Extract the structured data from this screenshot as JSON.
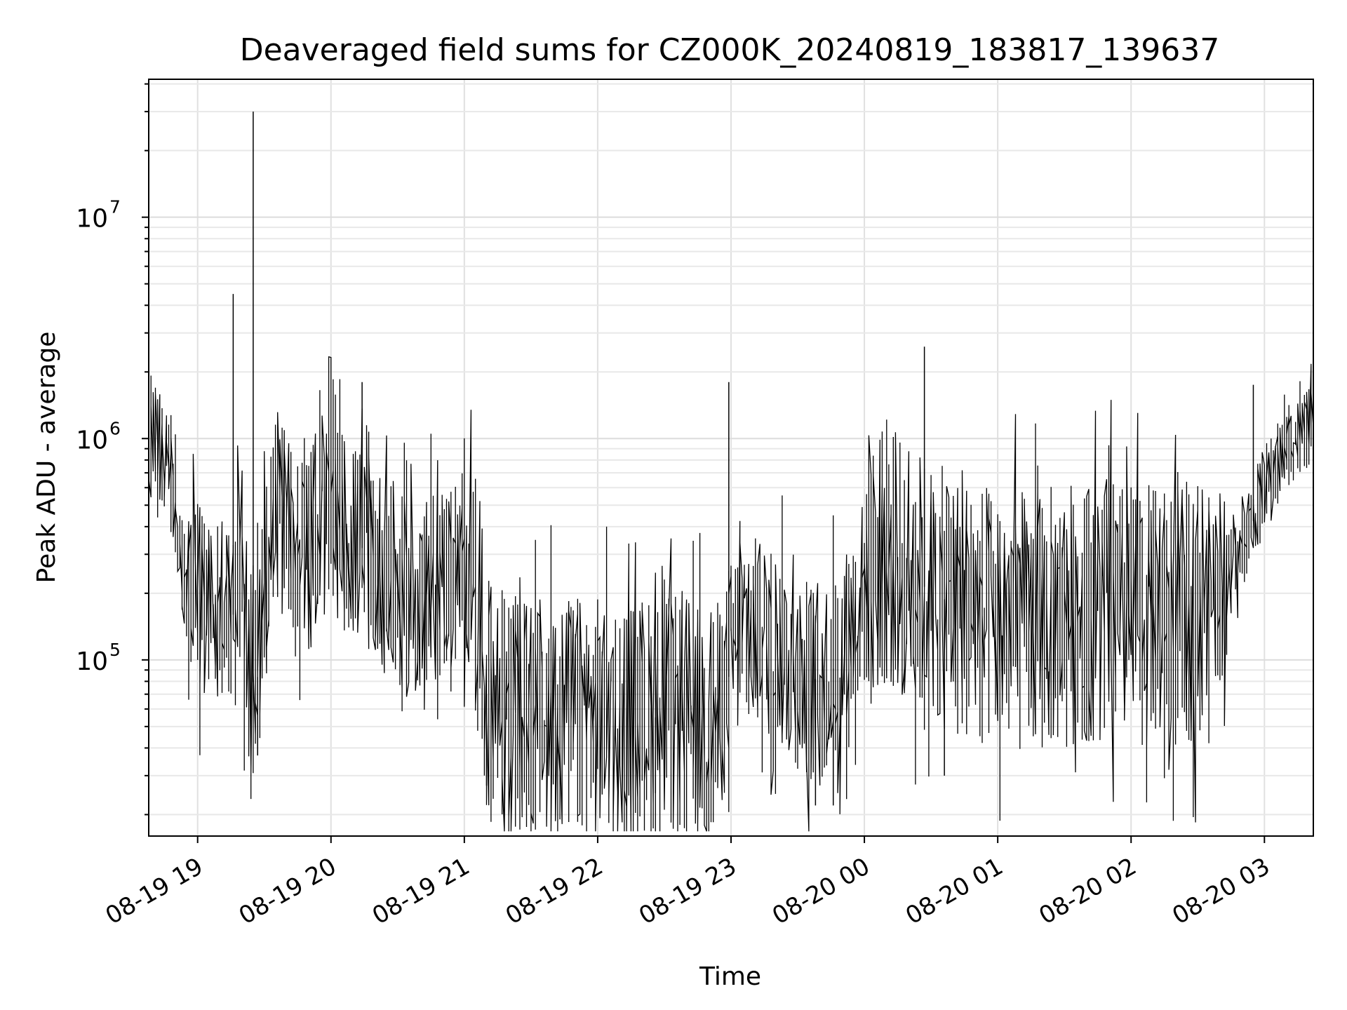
{
  "chart_data": {
    "type": "line",
    "title": "Deaveraged field sums for CZ000K_20240819_183817_139637",
    "xlabel": "Time",
    "ylabel": "Peak ADU - average",
    "x_range": [
      "2024-08-19 18:38",
      "2024-08-20 03:22"
    ],
    "ylim": [
      16000,
      42000000
    ],
    "yscale": "log",
    "grid": true,
    "line_color": "#000000",
    "x_ticks": [
      {
        "time": "2024-08-19 19:00",
        "label": "08-19 19"
      },
      {
        "time": "2024-08-19 20:00",
        "label": "08-19 20"
      },
      {
        "time": "2024-08-19 21:00",
        "label": "08-19 21"
      },
      {
        "time": "2024-08-19 22:00",
        "label": "08-19 22"
      },
      {
        "time": "2024-08-19 23:00",
        "label": "08-19 23"
      },
      {
        "time": "2024-08-20 00:00",
        "label": "08-20 00"
      },
      {
        "time": "2024-08-20 01:00",
        "label": "08-20 01"
      },
      {
        "time": "2024-08-20 02:00",
        "label": "08-20 02"
      },
      {
        "time": "2024-08-20 03:00",
        "label": "08-20 03"
      }
    ],
    "y_ticks": [
      {
        "value": 100000,
        "base": "10",
        "exp": "5"
      },
      {
        "value": 1000000,
        "base": "10",
        "exp": "6"
      },
      {
        "value": 10000000,
        "base": "10",
        "exp": "7"
      }
    ],
    "series": [
      {
        "x": [
          "2024-08-19 18:38",
          "2024-08-19 18:43",
          "2024-08-19 18:48",
          "2024-08-19 18:52",
          "2024-08-19 18:56",
          "2024-08-19 19:00",
          "2024-08-19 19:05",
          "2024-08-19 19:10",
          "2024-08-19 19:13",
          "2024-08-19 19:16",
          "2024-08-19 19:20",
          "2024-08-19 19:24",
          "2024-08-19 19:26",
          "2024-08-19 19:28",
          "2024-08-19 19:32",
          "2024-08-19 19:36",
          "2024-08-19 19:40",
          "2024-08-19 19:45",
          "2024-08-19 19:50",
          "2024-08-19 19:55",
          "2024-08-19 20:00",
          "2024-08-19 20:10",
          "2024-08-19 20:20",
          "2024-08-19 20:30",
          "2024-08-19 20:40",
          "2024-08-19 20:50",
          "2024-08-19 21:00",
          "2024-08-19 21:05",
          "2024-08-19 21:10",
          "2024-08-19 21:20",
          "2024-08-19 21:40",
          "2024-08-19 22:00",
          "2024-08-19 22:20",
          "2024-08-19 22:40",
          "2024-08-19 22:55",
          "2024-08-19 23:02",
          "2024-08-19 23:10",
          "2024-08-19 23:20",
          "2024-08-19 23:30",
          "2024-08-19 23:40",
          "2024-08-19 23:50",
          "2024-08-20 00:00",
          "2024-08-20 00:10",
          "2024-08-20 00:20",
          "2024-08-20 00:30",
          "2024-08-20 00:40",
          "2024-08-20 01:00",
          "2024-08-20 01:20",
          "2024-08-20 01:40",
          "2024-08-20 02:00",
          "2024-08-20 02:20",
          "2024-08-20 02:30",
          "2024-08-20 02:40",
          "2024-08-20 02:50",
          "2024-08-20 03:00",
          "2024-08-20 03:10",
          "2024-08-20 03:22"
        ],
        "y": [
          1150000,
          950000,
          700000,
          400000,
          200000,
          180000,
          200000,
          170000,
          180000,
          160000,
          200000,
          90000,
          70000,
          100000,
          300000,
          500000,
          400000,
          350000,
          300000,
          400000,
          450000,
          350000,
          280000,
          200000,
          180000,
          230000,
          250000,
          280000,
          70000,
          55000,
          55000,
          55000,
          55000,
          55000,
          52000,
          120000,
          130000,
          120000,
          90000,
          80000,
          100000,
          200000,
          300000,
          250000,
          200000,
          180000,
          150000,
          150000,
          170000,
          160000,
          150000,
          170000,
          220000,
          300000,
          600000,
          900000,
          1150000
        ]
      }
    ],
    "peaks": [
      {
        "x": "2024-08-19 19:25",
        "y": 30000000
      },
      {
        "x": "2024-08-19 19:16",
        "y": 4500000
      },
      {
        "x": "2024-08-19 20:14",
        "y": 1800000
      },
      {
        "x": "2024-08-19 22:59",
        "y": 1800000
      },
      {
        "x": "2024-08-20 00:27",
        "y": 2600000
      },
      {
        "x": "2024-08-20 02:55",
        "y": 1750000
      }
    ],
    "troughs": [
      {
        "x": "2024-08-19 19:27",
        "y": 37000
      },
      {
        "x": "2024-08-19 21:10",
        "y": 27000
      },
      {
        "x": "2024-08-19 22:26",
        "y": 25000
      },
      {
        "x": "2024-08-19 23:38",
        "y": 22000
      },
      {
        "x": "2024-08-19 23:46",
        "y": 22000
      },
      {
        "x": "2024-08-20 00:36",
        "y": 30000
      }
    ]
  }
}
